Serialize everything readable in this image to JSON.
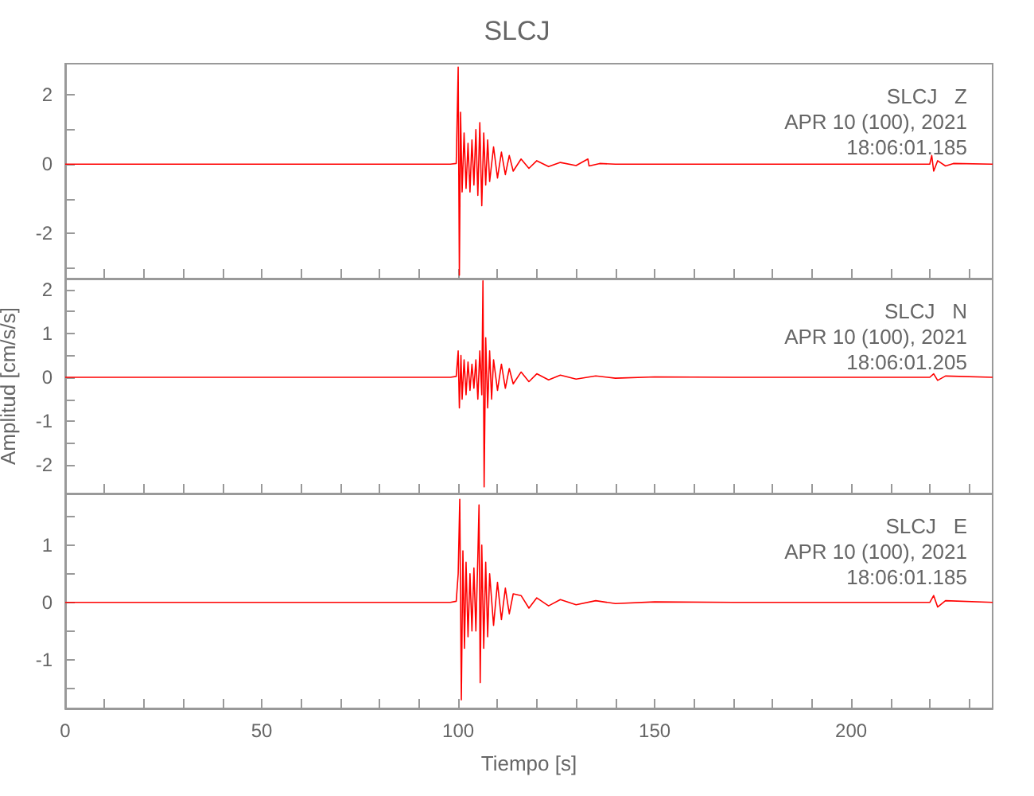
{
  "chart_data": [
    {
      "type": "line",
      "title": "SLCJ",
      "annotations": [
        "SLCJ   Z",
        "APR 10 (100), 2021",
        "18:06:01.185"
      ],
      "tick_labels": "y",
      "xlim": [
        0,
        236
      ],
      "ylim": [
        -3.3,
        2.9
      ],
      "xticks": [
        0,
        {
          "value": 10,
          "label": null
        },
        {
          "value": 20,
          "label": null
        },
        {
          "value": 30,
          "label": null
        },
        {
          "value": 40,
          "label": null
        },
        50,
        {
          "value": 60,
          "label": null
        },
        {
          "value": 70,
          "label": null
        },
        {
          "value": 80,
          "label": null
        },
        {
          "value": 90,
          "label": null
        },
        100,
        {
          "value": 110,
          "label": null
        },
        {
          "value": 120,
          "label": null
        },
        {
          "value": 130,
          "label": null
        },
        {
          "value": 140,
          "label": null
        },
        150,
        {
          "value": 160,
          "label": null
        },
        {
          "value": 170,
          "label": null
        },
        {
          "value": 180,
          "label": null
        },
        {
          "value": 190,
          "label": null
        },
        200,
        {
          "value": 210,
          "label": null
        },
        {
          "value": 220,
          "label": null
        },
        {
          "value": 230,
          "label": null
        }
      ],
      "yticks": [
        {
          "value": -3,
          "label": null
        },
        -2,
        {
          "value": -1,
          "label": null
        },
        0,
        {
          "value": 1,
          "label": null
        },
        2
      ],
      "series": [
        {
          "color": "#ff0000",
          "x": [
            0,
            20,
            40,
            60,
            80,
            98,
            99.5,
            100,
            100.3,
            100.6,
            101,
            101.5,
            102,
            102.5,
            103,
            103.5,
            104,
            104.5,
            105,
            105.5,
            106,
            106.5,
            107,
            107.5,
            108,
            109,
            110,
            111,
            112,
            113,
            114,
            116,
            118,
            120,
            123,
            126,
            130,
            133,
            133.3,
            136,
            140,
            150,
            170,
            200,
            220,
            220.5,
            221,
            222,
            224,
            226,
            236
          ],
          "values": [
            0,
            0,
            0,
            0,
            0,
            0,
            0.02,
            2.8,
            -3.2,
            1.5,
            -0.8,
            0.9,
            -0.7,
            0.6,
            -0.8,
            0.7,
            -0.6,
            1.0,
            -0.9,
            1.2,
            -1.2,
            0.9,
            -0.6,
            0.7,
            -0.5,
            0.5,
            -0.4,
            0.35,
            -0.3,
            0.25,
            -0.2,
            0.15,
            -0.12,
            0.1,
            -0.07,
            0.05,
            -0.04,
            0.15,
            -0.05,
            0.02,
            0,
            0,
            0,
            0,
            0,
            0.25,
            -0.2,
            0.1,
            -0.05,
            0.02,
            0
          ]
        }
      ]
    },
    {
      "type": "line",
      "ylabel": "Amplitud [cm/s/s]",
      "annotations": [
        "SLCJ   N",
        "APR 10 (100), 2021",
        "18:06:01.205"
      ],
      "tick_labels": "y",
      "xlim": [
        0,
        236
      ],
      "ylim": [
        -2.65,
        2.25
      ],
      "xticks": [
        0,
        {
          "value": 10,
          "label": null
        },
        {
          "value": 20,
          "label": null
        },
        {
          "value": 30,
          "label": null
        },
        {
          "value": 40,
          "label": null
        },
        50,
        {
          "value": 60,
          "label": null
        },
        {
          "value": 70,
          "label": null
        },
        {
          "value": 80,
          "label": null
        },
        {
          "value": 90,
          "label": null
        },
        100,
        {
          "value": 110,
          "label": null
        },
        {
          "value": 120,
          "label": null
        },
        {
          "value": 130,
          "label": null
        },
        {
          "value": 140,
          "label": null
        },
        150,
        {
          "value": 160,
          "label": null
        },
        {
          "value": 170,
          "label": null
        },
        {
          "value": 180,
          "label": null
        },
        {
          "value": 190,
          "label": null
        },
        200,
        {
          "value": 210,
          "label": null
        },
        {
          "value": 220,
          "label": null
        },
        {
          "value": 230,
          "label": null
        }
      ],
      "yticks": [
        -2,
        {
          "value": -1.5,
          "label": null
        },
        -1,
        {
          "value": -0.5,
          "label": null
        },
        0,
        {
          "value": 0.5,
          "label": null
        },
        1,
        {
          "value": 1.5,
          "label": null
        },
        2
      ],
      "series": [
        {
          "color": "#ff0000",
          "x": [
            0,
            50,
            98,
            99.5,
            100,
            100.3,
            100.7,
            101,
            101.5,
            102,
            102.5,
            103,
            103.5,
            104,
            104.5,
            105,
            105.5,
            106,
            106.3,
            106.6,
            107,
            107.5,
            108,
            108.5,
            109,
            110,
            111,
            112,
            113,
            114,
            116,
            118,
            120,
            123,
            126,
            130,
            135,
            140,
            150,
            170,
            200,
            220,
            221,
            222,
            224,
            236
          ],
          "values": [
            0,
            0,
            0,
            0.02,
            0.6,
            -0.7,
            0.5,
            -0.5,
            0.4,
            -0.4,
            0.35,
            -0.3,
            0.3,
            -0.25,
            0.4,
            -0.5,
            0.6,
            -0.4,
            2.2,
            -2.5,
            0.9,
            -0.7,
            0.6,
            -0.5,
            0.4,
            -0.3,
            0.3,
            -0.25,
            0.2,
            -0.15,
            0.12,
            -0.1,
            0.08,
            -0.06,
            0.05,
            -0.04,
            0.03,
            -0.02,
            0.01,
            0,
            0,
            0,
            0.08,
            -0.07,
            0.03,
            0
          ]
        }
      ]
    },
    {
      "type": "line",
      "xlabel": "Tiempo [s]",
      "annotations": [
        "SLCJ   E",
        "APR 10 (100), 2021",
        "18:06:01.185"
      ],
      "xlim": [
        0,
        236
      ],
      "ylim": [
        -1.85,
        1.9
      ],
      "xticks": [
        0,
        {
          "value": 10,
          "label": null
        },
        {
          "value": 20,
          "label": null
        },
        {
          "value": 30,
          "label": null
        },
        {
          "value": 40,
          "label": null
        },
        50,
        {
          "value": 60,
          "label": null
        },
        {
          "value": 70,
          "label": null
        },
        {
          "value": 80,
          "label": null
        },
        {
          "value": 90,
          "label": null
        },
        100,
        {
          "value": 110,
          "label": null
        },
        {
          "value": 120,
          "label": null
        },
        {
          "value": 130,
          "label": null
        },
        {
          "value": 140,
          "label": null
        },
        150,
        {
          "value": 160,
          "label": null
        },
        {
          "value": 170,
          "label": null
        },
        {
          "value": 180,
          "label": null
        },
        {
          "value": 190,
          "label": null
        },
        200,
        {
          "value": 210,
          "label": null
        },
        {
          "value": 220,
          "label": null
        },
        {
          "value": 230,
          "label": null
        }
      ],
      "yticks": [
        {
          "value": -1.5,
          "label": null
        },
        -1,
        {
          "value": -0.5,
          "label": null
        },
        0,
        {
          "value": 0.5,
          "label": null
        },
        1,
        {
          "value": 1.5,
          "label": null
        }
      ],
      "series": [
        {
          "color": "#ff0000",
          "x": [
            0,
            50,
            98,
            99.5,
            100,
            100.4,
            100.8,
            101.2,
            101.6,
            102,
            102.5,
            103,
            103.5,
            104,
            104.5,
            105,
            105.3,
            105.6,
            106,
            106.5,
            107,
            107.5,
            108,
            109,
            110,
            111,
            112,
            113,
            114,
            116,
            118,
            120,
            123,
            126,
            130,
            135,
            140,
            150,
            170,
            200,
            220,
            221,
            222,
            224,
            236
          ],
          "values": [
            0,
            0,
            0,
            0.02,
            0.5,
            1.8,
            -1.7,
            0.9,
            -0.8,
            0.7,
            -0.6,
            0.5,
            -0.5,
            0.6,
            -0.5,
            0.8,
            1.7,
            -1.4,
            1.0,
            -0.8,
            0.7,
            -0.6,
            0.5,
            -0.4,
            0.35,
            -0.3,
            0.25,
            -0.2,
            0.15,
            0.12,
            -0.1,
            0.08,
            -0.06,
            0.05,
            -0.04,
            0.03,
            -0.02,
            0.01,
            0,
            0,
            0,
            0.12,
            -0.08,
            0.03,
            0
          ]
        }
      ]
    }
  ]
}
